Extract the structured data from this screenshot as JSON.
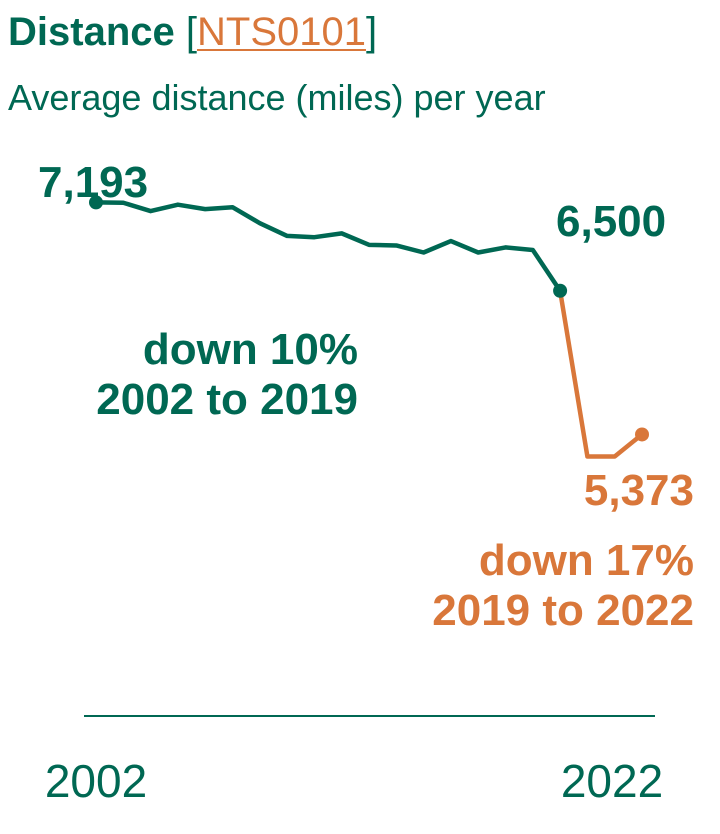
{
  "title": {
    "main": "Distance",
    "bracket_open": "[",
    "link_text": "NTS0101",
    "bracket_close": "]"
  },
  "subtitle": "Average distance (miles) per year",
  "colors": {
    "green": "#006853",
    "orange": "#D9773A"
  },
  "chart_data": {
    "type": "line",
    "title": "Distance [NTS0101]",
    "subtitle": "Average distance (miles) per year",
    "x_tick_labels": [
      "2002",
      "2022"
    ],
    "ylim": [
      5000,
      7400
    ],
    "series": [
      {
        "color": "#006853",
        "x": [
          2002,
          2003,
          2004,
          2005,
          2006,
          2007,
          2008,
          2009,
          2010,
          2011,
          2012,
          2013,
          2014,
          2015,
          2016,
          2017,
          2018,
          2019
        ],
        "values": [
          7193,
          7190,
          7125,
          7175,
          7140,
          7155,
          7030,
          6930,
          6920,
          6950,
          6860,
          6855,
          6800,
          6890,
          6800,
          6840,
          6820,
          6500
        ]
      },
      {
        "color": "#D9773A",
        "x": [
          2019,
          2020,
          2021,
          2022
        ],
        "values": [
          6500,
          5200,
          5200,
          5373
        ]
      }
    ],
    "point_labels": [
      {
        "x": 2002,
        "value": 7193,
        "text": "7,193",
        "series": 0
      },
      {
        "x": 2019,
        "value": 6500,
        "text": "6,500",
        "series": 0
      },
      {
        "x": 2022,
        "value": 5373,
        "text": "5,373",
        "series": 1
      }
    ],
    "annotations": [
      {
        "lines": [
          "down 10%",
          "2002 to 2019"
        ],
        "series": 0
      },
      {
        "lines": [
          "down 17%",
          "2019 to 2022"
        ],
        "series": 1
      }
    ]
  }
}
